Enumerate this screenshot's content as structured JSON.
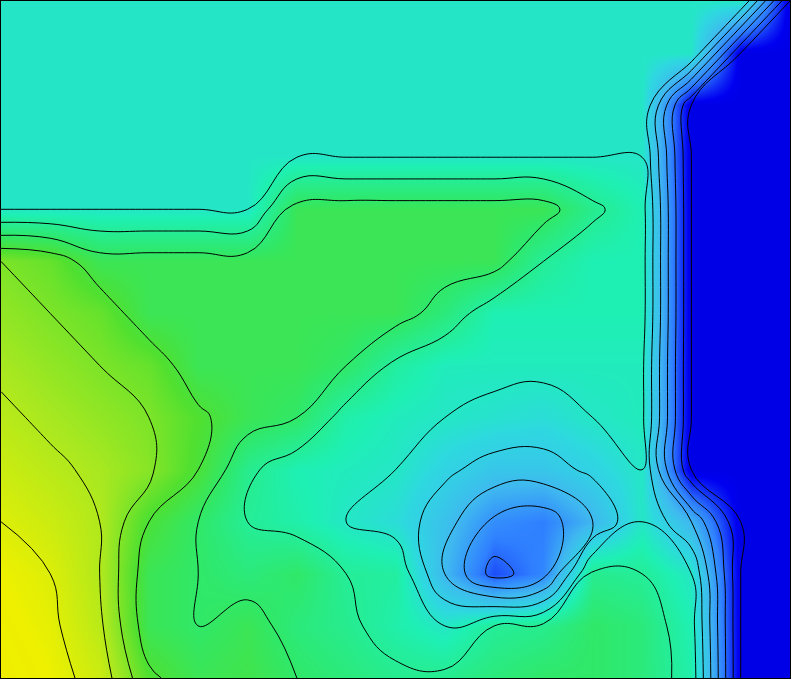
{
  "chart_data": {
    "type": "contour",
    "x": [
      0,
      1,
      2,
      3,
      4,
      5,
      6,
      7,
      8,
      9,
      10,
      11,
      12,
      13,
      14,
      15,
      16
    ],
    "y": [
      0,
      1,
      2,
      3,
      4,
      5,
      6,
      7,
      8,
      9,
      10,
      11,
      12,
      13
    ],
    "z": [
      [
        4.0,
        4.0,
        4.0,
        4.0,
        4.0,
        4.0,
        4.0,
        4.0,
        4.0,
        4.0,
        4.0,
        4.0,
        4.0,
        4.0,
        4.0,
        4.0,
        1.0
      ],
      [
        4.0,
        4.0,
        4.0,
        4.0,
        4.0,
        4.0,
        4.0,
        4.0,
        4.0,
        4.0,
        4.0,
        4.0,
        4.0,
        4.0,
        4.0,
        1.0,
        1.0
      ],
      [
        4.0,
        4.0,
        4.0,
        4.0,
        4.0,
        4.0,
        4.0,
        4.0,
        4.0,
        4.0,
        4.0,
        4.0,
        4.0,
        4.0,
        1.0,
        1.0,
        1.0
      ],
      [
        4.0,
        4.0,
        4.0,
        4.0,
        4.0,
        4.0,
        4.0,
        4.0,
        4.0,
        4.0,
        4.0,
        4.0,
        4.0,
        4.0,
        1.0,
        1.0,
        1.0
      ],
      [
        4.0,
        4.0,
        4.0,
        4.0,
        4.0,
        4.0,
        5.2,
        5.2,
        5.2,
        5.2,
        5.2,
        5.2,
        4.6,
        4.2,
        1.0,
        1.0,
        1.0
      ],
      [
        6.0,
        5.8,
        5.2,
        5.2,
        5.2,
        5.2,
        5.2,
        5.2,
        5.2,
        5.2,
        5.2,
        4.5,
        4.2,
        4.2,
        1.0,
        1.0,
        1.0
      ],
      [
        6.2,
        6.0,
        5.8,
        5.2,
        5.2,
        5.2,
        5.2,
        5.2,
        5.2,
        4.8,
        4.2,
        4.2,
        4.2,
        4.2,
        1.0,
        1.0,
        1.0
      ],
      [
        6.4,
        6.2,
        6.0,
        5.8,
        5.2,
        5.2,
        5.2,
        5.0,
        4.4,
        4.1,
        4.1,
        4.1,
        4.1,
        4.1,
        1.0,
        1.0,
        1.0
      ],
      [
        6.6,
        6.4,
        6.2,
        6.0,
        5.6,
        5.2,
        5.0,
        4.3,
        4.1,
        4.0,
        3.9,
        3.8,
        4.0,
        4.1,
        1.0,
        1.0,
        1.0
      ],
      [
        6.8,
        6.6,
        6.4,
        6.1,
        5.5,
        4.6,
        4.2,
        4.1,
        4.0,
        3.6,
        3.3,
        3.3,
        3.6,
        4.0,
        1.0,
        1.0,
        1.0
      ],
      [
        7.0,
        6.8,
        6.5,
        5.5,
        5.0,
        4.5,
        4.3,
        4.0,
        3.8,
        3.2,
        2.4,
        2.2,
        3.0,
        4.0,
        3.0,
        1.0,
        1.0
      ],
      [
        7.2,
        7.0,
        6.5,
        5.2,
        5.0,
        4.8,
        5.0,
        4.5,
        4.4,
        3.0,
        1.8,
        2.3,
        4.6,
        4.5,
        4.0,
        1.0,
        1.0
      ],
      [
        7.3,
        7.1,
        6.6,
        5.2,
        5.0,
        5.2,
        4.8,
        4.6,
        4.3,
        4.0,
        4.5,
        4.6,
        5.0,
        4.8,
        4.2,
        1.0,
        1.0
      ],
      [
        7.4,
        7.2,
        6.8,
        5.6,
        5.2,
        5.3,
        5.0,
        4.8,
        4.6,
        4.6,
        4.8,
        5.0,
        5.0,
        4.8,
        4.3,
        1.0,
        1.0
      ]
    ],
    "zlim": [
      0,
      10
    ],
    "xlim": [
      0,
      16
    ],
    "ylim": [
      13,
      0
    ],
    "tick_labels": false,
    "grid": false
  }
}
